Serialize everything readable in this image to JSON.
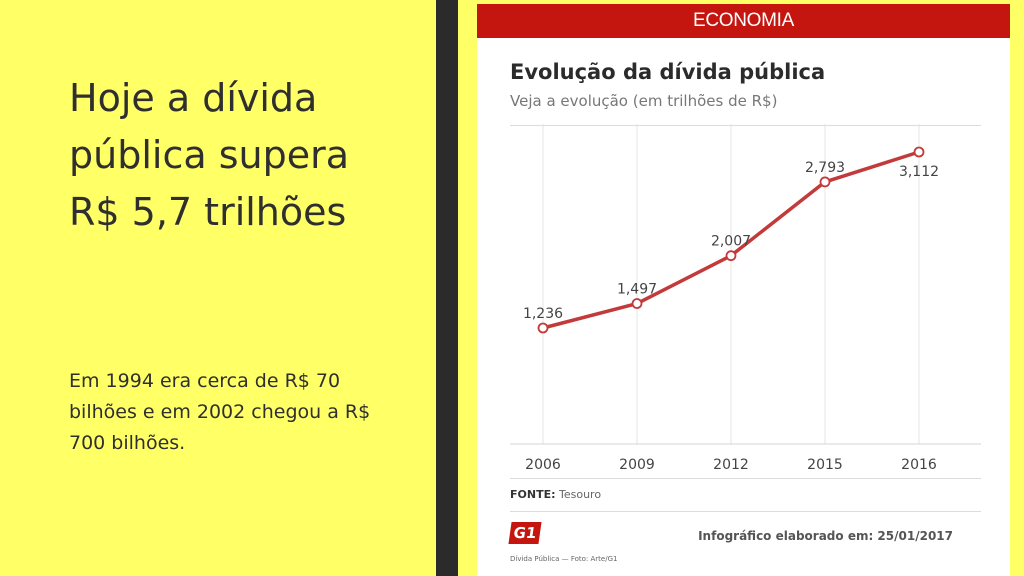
{
  "slide": {
    "headline": "Hoje a dívida pública supera R$ 5,7 trilhões",
    "body": "Em 1994 era cerca  de R$ 70 bilhões e em 2002 chegou a R$ 700 bilhões."
  },
  "card": {
    "banner": "ECONOMIA",
    "source_label": "FONTE:",
    "source_value": "Tesouro",
    "logo": "G1",
    "credit": "Infográfico elaborado em: 25/01/2017",
    "caption": "Dívida Pública — Foto: Arte/G1"
  },
  "colors": {
    "accent": "#c4150e",
    "line": "#c23a3a",
    "background": "#ffff66"
  },
  "chart_data": {
    "type": "line",
    "title": "Evolução da dívida pública",
    "subtitle": "Veja a evolução (em trilhões de R$)",
    "xlabel": "",
    "ylabel": "",
    "categories": [
      "2006",
      "2009",
      "2012",
      "2015",
      "2016"
    ],
    "series": [
      {
        "name": "Dívida pública (trilhões de R$)",
        "values": [
          1.236,
          1.497,
          2.007,
          2.793,
          3.112
        ],
        "labels": [
          "1,236",
          "1,497",
          "2,007",
          "2,793",
          "3,112"
        ]
      }
    ],
    "ylim": [
      0,
      3.2
    ],
    "grid": true,
    "legend": "none"
  }
}
